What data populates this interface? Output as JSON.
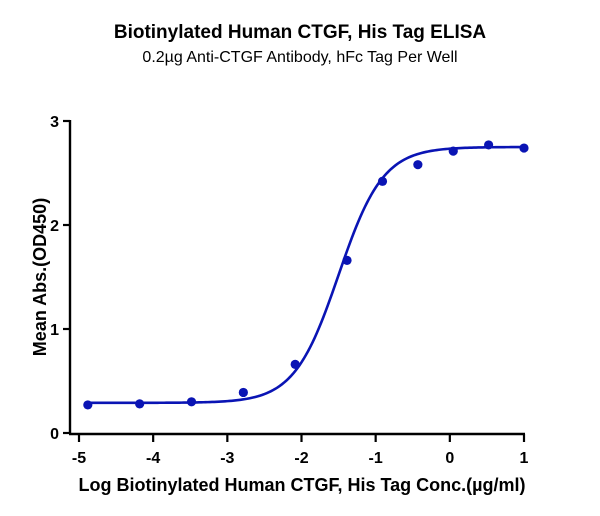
{
  "header": {
    "title": "Biotinylated Human CTGF, His Tag ELISA",
    "subtitle": "0.2µg Anti-CTGF Antibody, hFc Tag Per Well"
  },
  "colors": {
    "series": "#0a14b4",
    "axis": "#000000"
  },
  "chart_data": {
    "type": "scatter",
    "title": "Biotinylated Human CTGF, His Tag ELISA",
    "subtitle": "0.2µg Anti-CTGF Antibody, hFc Tag Per Well",
    "xlabel": "Log Biotinylated Human CTGF, His Tag Conc.(µg/ml)",
    "ylabel": "Mean Abs.(OD450)",
    "xlim": [
      -5,
      1
    ],
    "ylim": [
      0,
      3
    ],
    "xticks": [
      -5,
      -4,
      -3,
      -2,
      -1,
      0,
      1
    ],
    "yticks": [
      0,
      1,
      2,
      3
    ],
    "grid": false,
    "legend": null,
    "series": [
      {
        "name": "Biotinylated Human CTGF, His Tag",
        "x": [
          -4.881,
          -4.182,
          -3.483,
          -2.784,
          -2.085,
          -1.386,
          -0.908,
          -0.431,
          0.046,
          0.523,
          1.0
        ],
        "y": [
          0.27,
          0.28,
          0.3,
          0.39,
          0.66,
          1.66,
          2.42,
          2.58,
          2.71,
          2.77,
          2.74
        ],
        "fit": {
          "model": "4PL",
          "bottom": 0.29,
          "top": 2.75,
          "logEC50": -1.5,
          "hillslope": 1.45
        }
      }
    ]
  }
}
